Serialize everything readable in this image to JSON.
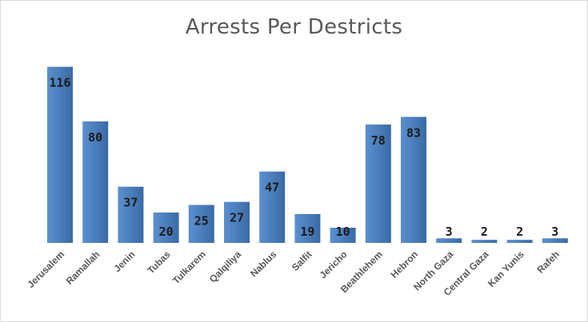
{
  "chart_data": {
    "type": "bar",
    "title": "Arrests Per Destricts",
    "xlabel": "",
    "ylabel": "",
    "categories": [
      "Jerusalem",
      "Ramallah",
      "Jenin",
      "Tubas",
      "Tulkarem",
      "Qalqiliya",
      "Nablus",
      "Salfit",
      "Jericho",
      "Beathlehem",
      "Hebron",
      "North Gaza",
      "Central Gaza",
      "Kan Yunis",
      "Rafeh"
    ],
    "values": [
      116,
      80,
      37,
      20,
      25,
      27,
      47,
      19,
      10,
      78,
      83,
      3,
      2,
      2,
      3
    ],
    "ylim": [
      0,
      125
    ],
    "grid": false,
    "legend": "none",
    "bar_color": "#4a7ebb",
    "bar_color_light": "#5b8fd0",
    "bar_color_dark": "#3a6aa5",
    "label_color": "#1a1a1a",
    "tick_color": "#595959"
  }
}
